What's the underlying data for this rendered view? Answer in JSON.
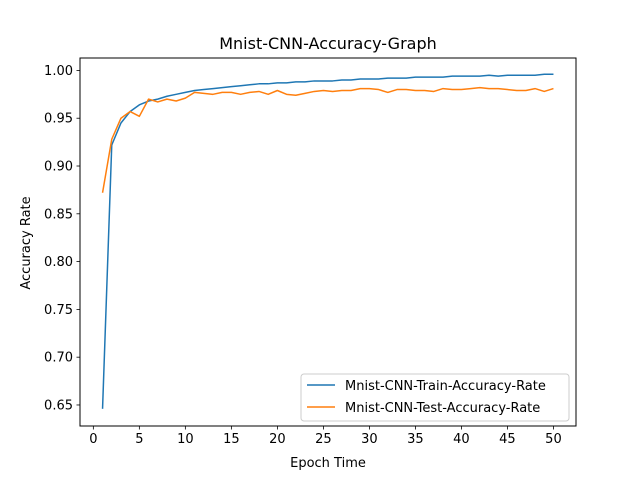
{
  "chart_data": {
    "type": "line",
    "title": "Mnist-CNN-Accuracy-Graph",
    "xlabel": "Epoch Time",
    "ylabel": "Accuracy Rate",
    "xlim": [
      -1.45,
      52.45
    ],
    "ylim": [
      0.628,
      1.013
    ],
    "x_ticks": [
      0,
      5,
      10,
      15,
      20,
      25,
      30,
      35,
      40,
      45,
      50
    ],
    "y_ticks": [
      0.65,
      0.7,
      0.75,
      0.8,
      0.85,
      0.9,
      0.95,
      1.0
    ],
    "x_tick_labels": [
      "0",
      "5",
      "10",
      "15",
      "20",
      "25",
      "30",
      "35",
      "40",
      "45",
      "50"
    ],
    "y_tick_labels": [
      "0.65",
      "0.70",
      "0.75",
      "0.80",
      "0.85",
      "0.90",
      "0.95",
      "1.00"
    ],
    "grid": false,
    "legend_position": "lower-right",
    "x": [
      1,
      2,
      3,
      4,
      5,
      6,
      7,
      8,
      9,
      10,
      11,
      12,
      13,
      14,
      15,
      16,
      17,
      18,
      19,
      20,
      21,
      22,
      23,
      24,
      25,
      26,
      27,
      28,
      29,
      30,
      31,
      32,
      33,
      34,
      35,
      36,
      37,
      38,
      39,
      40,
      41,
      42,
      43,
      44,
      45,
      46,
      47,
      48,
      49,
      50
    ],
    "series": [
      {
        "name": "Mnist-CNN-Train-Accuracy-Rate",
        "color": "#1f77b4",
        "values": [
          0.646,
          0.922,
          0.945,
          0.957,
          0.964,
          0.968,
          0.97,
          0.973,
          0.975,
          0.977,
          0.979,
          0.98,
          0.981,
          0.982,
          0.983,
          0.984,
          0.985,
          0.986,
          0.986,
          0.987,
          0.987,
          0.988,
          0.988,
          0.989,
          0.989,
          0.989,
          0.99,
          0.99,
          0.991,
          0.991,
          0.991,
          0.992,
          0.992,
          0.992,
          0.993,
          0.993,
          0.993,
          0.993,
          0.994,
          0.994,
          0.994,
          0.994,
          0.995,
          0.994,
          0.995,
          0.995,
          0.995,
          0.995,
          0.996,
          0.996
        ]
      },
      {
        "name": "Mnist-CNN-Test-Accuracy-Rate",
        "color": "#ff7f0e",
        "values": [
          0.872,
          0.928,
          0.95,
          0.957,
          0.952,
          0.97,
          0.967,
          0.97,
          0.968,
          0.971,
          0.977,
          0.976,
          0.975,
          0.977,
          0.977,
          0.975,
          0.977,
          0.978,
          0.975,
          0.979,
          0.975,
          0.974,
          0.976,
          0.978,
          0.979,
          0.978,
          0.979,
          0.979,
          0.981,
          0.981,
          0.98,
          0.977,
          0.98,
          0.98,
          0.979,
          0.979,
          0.978,
          0.981,
          0.98,
          0.98,
          0.981,
          0.982,
          0.981,
          0.981,
          0.98,
          0.979,
          0.979,
          0.981,
          0.978,
          0.981
        ]
      }
    ]
  }
}
